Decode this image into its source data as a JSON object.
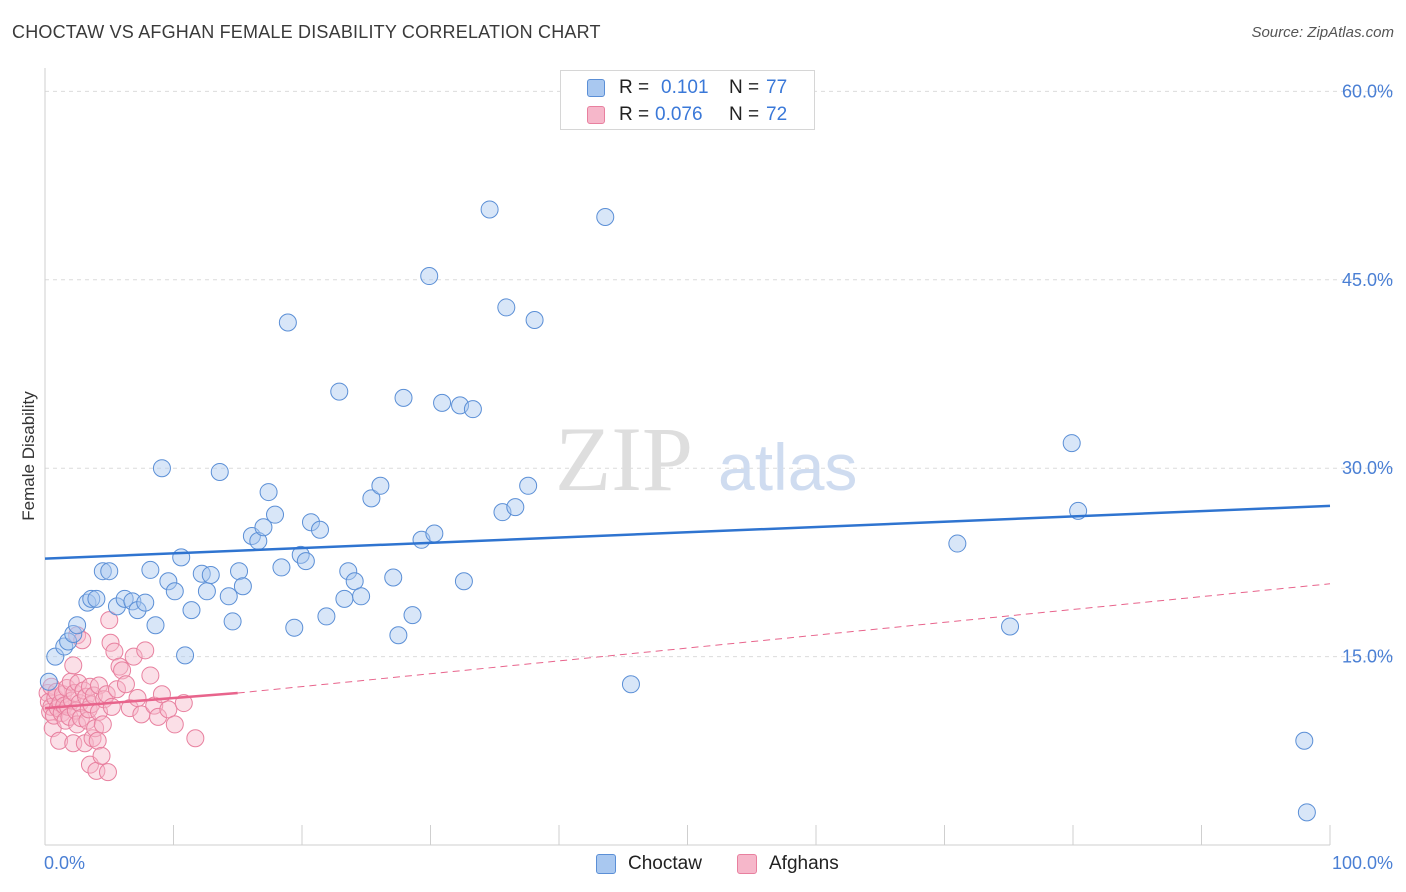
{
  "title": "CHOCTAW VS AFGHAN FEMALE DISABILITY CORRELATION CHART",
  "source": "Source: ZipAtlas.com",
  "watermark": {
    "zip": "ZIP",
    "atlas": "atlas"
  },
  "legend": {
    "r_label": "R =",
    "n_label": "N =",
    "series": [
      {
        "name": "Choctaw",
        "r": "0.101",
        "n": "77"
      },
      {
        "name": "Afghans",
        "r": "0.076",
        "n": "72"
      }
    ]
  },
  "colors": {
    "choctaw_fill": "#a9c8f0",
    "choctaw_stroke": "#5b8fd6",
    "choctaw_line": "#2f74d0",
    "afghan_fill": "#f6b7ca",
    "afghan_stroke": "#e8809f",
    "afghan_line": "#e8648c",
    "grid": "#dcdcdc",
    "axis_label": "#4a7fd4"
  },
  "chart_data": {
    "type": "scatter",
    "title": "CHOCTAW VS AFGHAN FEMALE DISABILITY CORRELATION CHART",
    "xlabel": "",
    "ylabel": "Female Disability",
    "xlim": [
      0,
      100
    ],
    "ylim": [
      0,
      62.5
    ],
    "x_tick_labels": [
      "0.0%",
      "100.0%"
    ],
    "y_ticks": [
      15,
      30,
      45,
      60
    ],
    "y_tick_labels": [
      "15.0%",
      "30.0%",
      "45.0%",
      "60.0%"
    ],
    "series": [
      {
        "name": "Choctaw",
        "r": 0.101,
        "n": 77,
        "trend": {
          "x": [
            0,
            100
          ],
          "y": [
            22.8,
            27.0
          ],
          "style": "solid"
        },
        "points": [
          [
            0.8,
            15.0
          ],
          [
            0.3,
            13.0
          ],
          [
            1.5,
            15.8
          ],
          [
            1.8,
            16.2
          ],
          [
            2.2,
            16.8
          ],
          [
            2.5,
            17.5
          ],
          [
            3.3,
            19.3
          ],
          [
            3.6,
            19.6
          ],
          [
            4.0,
            19.6
          ],
          [
            4.5,
            21.8
          ],
          [
            5.0,
            21.8
          ],
          [
            5.6,
            19.0
          ],
          [
            6.2,
            19.6
          ],
          [
            6.8,
            19.4
          ],
          [
            7.2,
            18.7
          ],
          [
            7.8,
            19.3
          ],
          [
            8.2,
            21.9
          ],
          [
            8.6,
            17.5
          ],
          [
            9.1,
            30.0
          ],
          [
            9.6,
            21.0
          ],
          [
            10.1,
            20.2
          ],
          [
            10.6,
            22.9
          ],
          [
            10.9,
            15.1
          ],
          [
            11.4,
            18.7
          ],
          [
            12.2,
            21.6
          ],
          [
            12.6,
            20.2
          ],
          [
            12.9,
            21.5
          ],
          [
            13.6,
            29.7
          ],
          [
            14.3,
            19.8
          ],
          [
            14.6,
            17.8
          ],
          [
            15.1,
            21.8
          ],
          [
            15.4,
            20.6
          ],
          [
            16.1,
            24.6
          ],
          [
            16.6,
            24.2
          ],
          [
            17.0,
            25.3
          ],
          [
            17.4,
            28.1
          ],
          [
            17.9,
            26.3
          ],
          [
            18.4,
            22.1
          ],
          [
            18.9,
            41.6
          ],
          [
            19.4,
            17.3
          ],
          [
            19.9,
            23.1
          ],
          [
            20.3,
            22.6
          ],
          [
            20.7,
            25.7
          ],
          [
            21.4,
            25.1
          ],
          [
            21.9,
            18.2
          ],
          [
            22.9,
            36.1
          ],
          [
            23.3,
            19.6
          ],
          [
            23.6,
            21.8
          ],
          [
            24.1,
            21.0
          ],
          [
            24.6,
            19.8
          ],
          [
            25.4,
            27.6
          ],
          [
            26.1,
            28.6
          ],
          [
            27.1,
            21.3
          ],
          [
            27.5,
            16.7
          ],
          [
            27.9,
            35.6
          ],
          [
            28.6,
            18.3
          ],
          [
            29.3,
            24.3
          ],
          [
            29.9,
            45.3
          ],
          [
            30.3,
            24.8
          ],
          [
            30.9,
            35.2
          ],
          [
            32.3,
            35.0
          ],
          [
            32.6,
            21.0
          ],
          [
            33.3,
            34.7
          ],
          [
            34.6,
            50.6
          ],
          [
            35.6,
            26.5
          ],
          [
            35.9,
            42.8
          ],
          [
            36.6,
            26.9
          ],
          [
            37.6,
            28.6
          ],
          [
            38.1,
            41.8
          ],
          [
            43.6,
            50.0
          ],
          [
            45.6,
            12.8
          ],
          [
            71.0,
            24.0
          ],
          [
            75.1,
            17.4
          ],
          [
            79.9,
            32.0
          ],
          [
            80.4,
            26.6
          ],
          [
            98.0,
            8.3
          ],
          [
            98.2,
            2.6
          ]
        ]
      },
      {
        "name": "Afghans",
        "r": 0.076,
        "n": 72,
        "trend": {
          "x": [
            0,
            15,
            100
          ],
          "y": [
            10.9,
            12.1,
            20.8
          ],
          "style": "solid_then_dashed"
        },
        "points": [
          [
            0.2,
            12.1
          ],
          [
            0.3,
            11.4
          ],
          [
            0.4,
            10.6
          ],
          [
            0.5,
            12.6
          ],
          [
            0.5,
            11.0
          ],
          [
            0.6,
            9.3
          ],
          [
            0.7,
            10.3
          ],
          [
            0.8,
            11.7
          ],
          [
            0.9,
            12.2
          ],
          [
            1.0,
            10.9
          ],
          [
            1.1,
            8.3
          ],
          [
            1.2,
            11.3
          ],
          [
            1.3,
            10.5
          ],
          [
            1.4,
            12.0
          ],
          [
            1.5,
            11.1
          ],
          [
            1.6,
            9.9
          ],
          [
            1.7,
            12.5
          ],
          [
            1.8,
            11.0
          ],
          [
            1.9,
            10.2
          ],
          [
            2.0,
            13.0
          ],
          [
            2.1,
            11.5
          ],
          [
            2.2,
            8.1
          ],
          [
            2.2,
            14.3
          ],
          [
            2.3,
            12.1
          ],
          [
            2.4,
            10.7
          ],
          [
            2.5,
            16.7
          ],
          [
            2.5,
            9.6
          ],
          [
            2.6,
            12.9
          ],
          [
            2.7,
            11.3
          ],
          [
            2.8,
            10.1
          ],
          [
            2.9,
            16.3
          ],
          [
            3.0,
            12.3
          ],
          [
            3.1,
            8.1
          ],
          [
            3.2,
            11.8
          ],
          [
            3.3,
            9.9
          ],
          [
            3.4,
            10.8
          ],
          [
            3.5,
            6.4
          ],
          [
            3.5,
            12.6
          ],
          [
            3.6,
            11.2
          ],
          [
            3.7,
            8.5
          ],
          [
            3.8,
            11.9
          ],
          [
            3.9,
            9.3
          ],
          [
            4.0,
            5.9
          ],
          [
            4.1,
            8.3
          ],
          [
            4.2,
            10.6
          ],
          [
            4.2,
            12.7
          ],
          [
            4.4,
            7.1
          ],
          [
            4.5,
            9.6
          ],
          [
            4.6,
            11.6
          ],
          [
            4.8,
            12.0
          ],
          [
            4.9,
            5.8
          ],
          [
            5.0,
            17.9
          ],
          [
            5.1,
            16.1
          ],
          [
            5.2,
            11.0
          ],
          [
            5.4,
            15.4
          ],
          [
            5.6,
            12.4
          ],
          [
            5.8,
            14.2
          ],
          [
            6.0,
            13.9
          ],
          [
            6.3,
            12.8
          ],
          [
            6.6,
            10.9
          ],
          [
            6.9,
            15.0
          ],
          [
            7.2,
            11.7
          ],
          [
            7.5,
            10.4
          ],
          [
            7.8,
            15.5
          ],
          [
            8.2,
            13.5
          ],
          [
            8.5,
            11.1
          ],
          [
            8.8,
            10.2
          ],
          [
            9.1,
            12.0
          ],
          [
            9.6,
            10.8
          ],
          [
            10.1,
            9.6
          ],
          [
            10.8,
            11.3
          ],
          [
            11.7,
            8.5
          ]
        ]
      }
    ]
  }
}
